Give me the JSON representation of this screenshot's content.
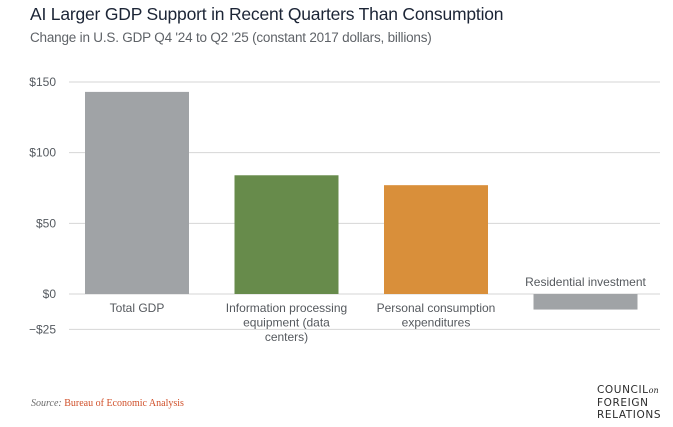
{
  "header": {
    "title": "AI Larger GDP Support in Recent Quarters Than Consumption",
    "subtitle": "Change in U.S. GDP Q4 '24 to Q2 '25 (constant 2017 dollars, billions)"
  },
  "chart_data": {
    "type": "bar",
    "title": "AI Larger GDP Support in Recent Quarters Than Consumption",
    "subtitle": "Change in U.S. GDP Q4 '24 to Q2 '25 (constant 2017 dollars, billions)",
    "xlabel": "",
    "ylabel": "",
    "categories": [
      "Total GDP",
      "Information processing equipment (data centers)",
      "Personal consumption expenditures",
      "Residential investment"
    ],
    "category_label_lines": [
      [
        "Total GDP"
      ],
      [
        "Information processing",
        "equipment (data",
        "centers)"
      ],
      [
        "Personal consumption",
        "expenditures"
      ],
      [
        "Residential investment"
      ]
    ],
    "values": [
      143,
      84,
      77,
      -11
    ],
    "colors": [
      "#a0a3a6",
      "#678b4b",
      "#d98f3a",
      "#a0a3a6"
    ],
    "ylim": [
      -25,
      150
    ],
    "yticks": [
      150,
      100,
      50,
      0,
      -25
    ],
    "ytick_labels": [
      "$150",
      "$100",
      "$50",
      "$0",
      "−$25"
    ],
    "grid": true,
    "legend": "none"
  },
  "footer": {
    "source_label": "Source:",
    "source_value": "Bureau of Economic Analysis",
    "logo_line1": "COUNCIL",
    "logo_on": "on",
    "logo_line2": "FOREIGN",
    "logo_line3": "RELATIONS"
  }
}
